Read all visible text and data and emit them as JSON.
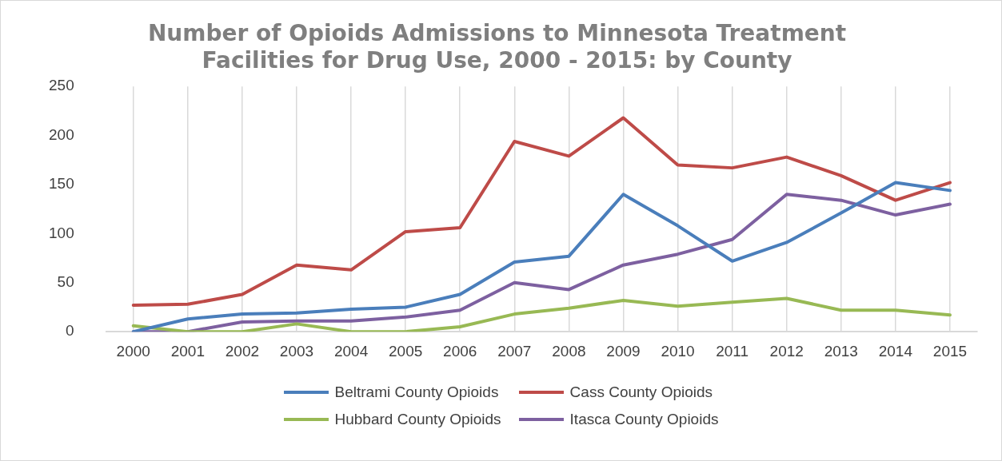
{
  "chart_data": {
    "type": "line",
    "title": "Number of Opioids Admissions to Minnesota Treatment Facilities for Drug Use, 2000 - 2015: by County",
    "categories": [
      "2000",
      "2001",
      "2002",
      "2003",
      "2004",
      "2005",
      "2006",
      "2007",
      "2008",
      "2009",
      "2010",
      "2011",
      "2012",
      "2013",
      "2014",
      "2015"
    ],
    "series": [
      {
        "name": "Beltrami County Opioids",
        "color": "#4a7ebb",
        "values": [
          0,
          13,
          18,
          19,
          23,
          25,
          38,
          71,
          77,
          140,
          108,
          72,
          91,
          121,
          152,
          144
        ]
      },
      {
        "name": "Cass County Opioids",
        "color": "#be4b48",
        "values": [
          27,
          28,
          38,
          68,
          63,
          102,
          106,
          194,
          179,
          218,
          170,
          167,
          178,
          159,
          134,
          152
        ]
      },
      {
        "name": "Hubbard County Opioids",
        "color": "#98b954",
        "values": [
          6,
          0,
          0,
          8,
          0,
          0,
          5,
          18,
          24,
          32,
          26,
          30,
          34,
          22,
          22,
          17
        ]
      },
      {
        "name": "Itasca County Opioids",
        "color": "#7d60a0",
        "values": [
          0,
          0,
          10,
          11,
          11,
          15,
          22,
          50,
          43,
          68,
          79,
          94,
          140,
          134,
          119,
          130
        ]
      }
    ],
    "ylim": [
      0,
      250
    ],
    "yticks": [
      0,
      50,
      100,
      150,
      200,
      250
    ],
    "grid": "x",
    "legend": "bottom",
    "marker": "none",
    "line_style": "solid"
  }
}
